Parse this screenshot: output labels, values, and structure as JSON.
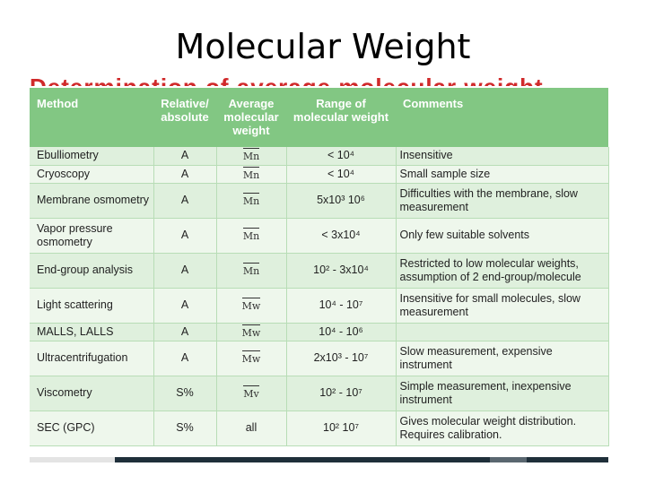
{
  "slide": {
    "title": "Molecular Weight",
    "cut_heading": "Determination of average molecular weight"
  },
  "table": {
    "headers": {
      "method": "Method",
      "relative_absolute": "Relative/ absolute",
      "average_mw": "Average molecular weight",
      "range": "Range of molecular weight",
      "comments": "Comments"
    },
    "rows": [
      {
        "method": "Ebulliometry",
        "ra": "A",
        "mw": "Mn",
        "range": "< 10⁴",
        "comments": "Insensitive"
      },
      {
        "method": "Cryoscopy",
        "ra": "A",
        "mw": "Mn",
        "range": "< 10⁴",
        "comments": "Small sample size"
      },
      {
        "method": "Membrane osmometry",
        "ra": "A",
        "mw": "Mn",
        "range": "5x10³ 10⁶",
        "comments": "Difficulties with the membrane, slow measurement"
      },
      {
        "method": "Vapor pressure osmometry",
        "ra": "A",
        "mw": "Mn",
        "range": "< 3x10⁴",
        "comments": "Only few suitable solvents"
      },
      {
        "method": "End-group analysis",
        "ra": "A",
        "mw": "Mn",
        "range": "10² - 3x10⁴",
        "comments": "Restricted to low molecular weights, assumption of 2 end-group/molecule"
      },
      {
        "method": "Light scattering",
        "ra": "A",
        "mw": "Mw",
        "range": "10⁴ - 10⁷",
        "comments": "Insensitive for small molecules, slow measurement"
      },
      {
        "method": "MALLS, LALLS",
        "ra": "A",
        "mw": "Mw",
        "range": "10⁴ - 10⁶",
        "comments": ""
      },
      {
        "method": "Ultracentrifugation",
        "ra": "A",
        "mw": "Mw",
        "range": "2x10³ - 10⁷",
        "comments": "Slow measurement, expensive instrument"
      },
      {
        "method": "Viscometry",
        "ra": "S%",
        "mw": "Mv",
        "range": "10² - 10⁷",
        "comments": "Simple measurement, inexpensive instrument"
      },
      {
        "method": "SEC (GPC)",
        "ra": "S%",
        "mw": "all",
        "range": "10² 10⁷",
        "comments": "Gives molecular weight distribution. Requires calibration."
      }
    ]
  },
  "colors": {
    "header_green": "#82c783",
    "row_green_light": "#eef7ec",
    "row_green": "#dff0dd",
    "heading_red": "#d0292a"
  }
}
